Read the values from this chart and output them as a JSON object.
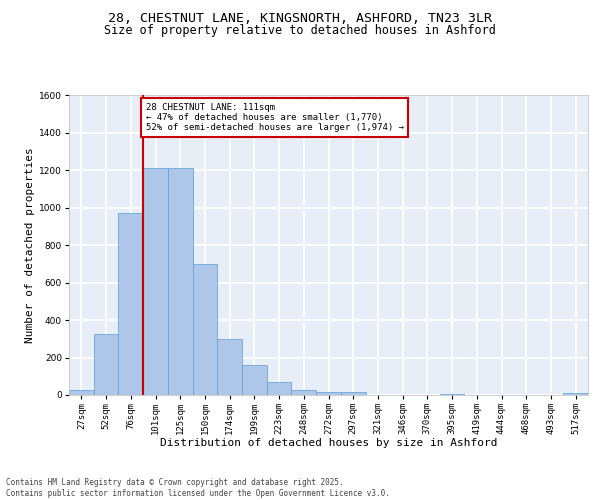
{
  "title_line1": "28, CHESTNUT LANE, KINGSNORTH, ASHFORD, TN23 3LR",
  "title_line2": "Size of property relative to detached houses in Ashford",
  "xlabel": "Distribution of detached houses by size in Ashford",
  "ylabel": "Number of detached properties",
  "categories": [
    "27sqm",
    "52sqm",
    "76sqm",
    "101sqm",
    "125sqm",
    "150sqm",
    "174sqm",
    "199sqm",
    "223sqm",
    "248sqm",
    "272sqm",
    "297sqm",
    "321sqm",
    "346sqm",
    "370sqm",
    "395sqm",
    "419sqm",
    "444sqm",
    "468sqm",
    "493sqm",
    "517sqm"
  ],
  "values": [
    25,
    325,
    970,
    1210,
    1210,
    700,
    300,
    160,
    70,
    28,
    18,
    15,
    0,
    0,
    0,
    5,
    0,
    0,
    0,
    0,
    12
  ],
  "bar_color": "#aec6e8",
  "bar_edge_color": "#5a9fd4",
  "background_color": "#e8eef8",
  "grid_color": "#ffffff",
  "annotation_box_text": "28 CHESTNUT LANE: 111sqm\n← 47% of detached houses are smaller (1,770)\n52% of semi-detached houses are larger (1,974) →",
  "annotation_box_color": "#ffffff",
  "annotation_box_edge_color": "#cc0000",
  "vline_x_index": 3,
  "vline_color": "#cc0000",
  "ylim": [
    0,
    1600
  ],
  "yticks": [
    0,
    200,
    400,
    600,
    800,
    1000,
    1200,
    1400,
    1600
  ],
  "footer_text": "Contains HM Land Registry data © Crown copyright and database right 2025.\nContains public sector information licensed under the Open Government Licence v3.0.",
  "title_fontsize": 9.5,
  "subtitle_fontsize": 8.5,
  "axis_label_fontsize": 8,
  "tick_fontsize": 6.5,
  "annotation_fontsize": 6.5,
  "footer_fontsize": 5.5
}
